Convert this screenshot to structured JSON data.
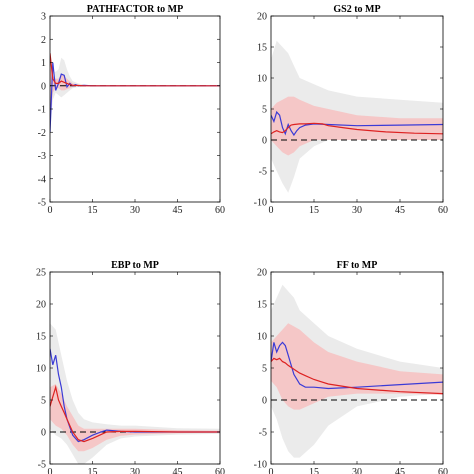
{
  "colors": {
    "outer_band": "#ebebeb",
    "inner_band": "#f6c3c3",
    "blue_line": "#3b3bd6",
    "red_line": "#dd2222",
    "zero_line": "#000000"
  },
  "chart_data": [
    {
      "type": "line",
      "title": "PATHFACTOR to MP",
      "xlim": [
        0,
        60
      ],
      "ylim": [
        -5,
        3
      ],
      "xticks": [
        0,
        15,
        30,
        45,
        60
      ],
      "yticks": [
        -5,
        -4,
        -3,
        -2,
        -1,
        0,
        1,
        2,
        3
      ],
      "zero_line": true,
      "outer_band": {
        "x": [
          0,
          1,
          2,
          3,
          4,
          5,
          6,
          7,
          8,
          10,
          12,
          15,
          60
        ],
        "lower": [
          -2.1,
          -0.6,
          -0.3,
          -0.4,
          -0.5,
          -0.4,
          -0.3,
          -0.2,
          -0.1,
          -0.05,
          -0.02,
          0,
          0
        ],
        "upper": [
          1.4,
          0.6,
          0.6,
          0.7,
          1.2,
          1.1,
          0.7,
          0.4,
          0.2,
          0.1,
          0.05,
          0.02,
          0
        ]
      },
      "inner_band": {
        "x": [
          0,
          1,
          2,
          3,
          4,
          5,
          6,
          7,
          8,
          10,
          12,
          15,
          60
        ],
        "lower": [
          -1.8,
          -0.3,
          -0.1,
          -0.1,
          -0.2,
          -0.2,
          -0.15,
          -0.1,
          -0.05,
          -0.02,
          0,
          0,
          0
        ],
        "upper": [
          1.2,
          0.4,
          0.3,
          0.3,
          0.5,
          0.4,
          0.3,
          0.2,
          0.1,
          0.05,
          0.02,
          0,
          0
        ]
      },
      "series": [
        {
          "color_key": "blue_line",
          "x": [
            0,
            1,
            2,
            3,
            4,
            5,
            6,
            7,
            8,
            9,
            10,
            12,
            15,
            60
          ],
          "y": [
            -2.0,
            1.0,
            -0.2,
            0.1,
            0.5,
            0.45,
            -0.05,
            0.1,
            0.0,
            0.05,
            0.0,
            0.02,
            0.0,
            0.0
          ]
        },
        {
          "color_key": "red_line",
          "x": [
            0,
            1,
            2,
            3,
            4,
            5,
            6,
            7,
            8,
            10,
            12,
            15,
            60
          ],
          "y": [
            1.4,
            0.3,
            0.1,
            0.1,
            0.2,
            0.15,
            0.1,
            0.05,
            0.02,
            0.01,
            0.0,
            0.0,
            0.0
          ]
        }
      ]
    },
    {
      "type": "line",
      "title": "GS2 to MP",
      "xlim": [
        0,
        60
      ],
      "ylim": [
        -10,
        20
      ],
      "xticks": [
        0,
        15,
        30,
        45,
        60
      ],
      "yticks": [
        -10,
        -5,
        0,
        5,
        10,
        15,
        20
      ],
      "zero_line": true,
      "outer_band": {
        "x": [
          0,
          2,
          4,
          6,
          8,
          10,
          15,
          20,
          30,
          45,
          60
        ],
        "lower": [
          -3,
          -5,
          -7,
          -8.5,
          -6,
          -3,
          -1,
          0,
          0.5,
          0.5,
          0.5
        ],
        "upper": [
          13,
          16,
          15,
          14,
          12,
          10,
          9,
          8,
          7,
          6.5,
          6
        ]
      },
      "inner_band": {
        "x": [
          0,
          2,
          4,
          6,
          8,
          10,
          15,
          20,
          30,
          45,
          60
        ],
        "lower": [
          0,
          -1,
          -2,
          -2.5,
          -2,
          -1,
          0,
          0,
          0,
          0,
          0
        ],
        "upper": [
          5,
          6,
          6.5,
          7,
          7,
          6.5,
          5.5,
          5,
          4,
          3.5,
          3.5
        ]
      },
      "series": [
        {
          "color_key": "blue_line",
          "x": [
            0,
            1,
            2,
            3,
            4,
            5,
            6,
            7,
            8,
            9,
            10,
            12,
            15,
            20,
            30,
            45,
            60
          ],
          "y": [
            4,
            3,
            4.5,
            4,
            2,
            1,
            2.5,
            1.5,
            0.8,
            1.5,
            2,
            2.4,
            2.6,
            2.5,
            2.3,
            2.4,
            2.5
          ]
        },
        {
          "color_key": "red_line",
          "x": [
            0,
            1,
            2,
            3,
            4,
            5,
            6,
            7,
            8,
            10,
            12,
            15,
            18,
            20,
            25,
            30,
            40,
            50,
            60
          ],
          "y": [
            1,
            1.3,
            1.5,
            1.3,
            1.2,
            1.5,
            2.0,
            2.4,
            2.5,
            2.6,
            2.6,
            2.7,
            2.6,
            2.3,
            2.0,
            1.7,
            1.3,
            1.1,
            1.0
          ]
        }
      ]
    },
    {
      "type": "line",
      "title": "EBP to MP",
      "xlim": [
        0,
        60
      ],
      "ylim": [
        -5,
        25
      ],
      "xticks": [
        0,
        15,
        30,
        45,
        60
      ],
      "yticks": [
        -5,
        0,
        5,
        10,
        15,
        20,
        25
      ],
      "zero_line": true,
      "outer_band": {
        "x": [
          0,
          2,
          4,
          6,
          8,
          10,
          12,
          15,
          20,
          25,
          30,
          45,
          60
        ],
        "lower": [
          0.5,
          -0.5,
          -1,
          -2,
          -3.5,
          -5,
          -5,
          -4,
          -2,
          -1,
          -0.7,
          -0.4,
          -0.3
        ],
        "upper": [
          17,
          16,
          12,
          8,
          5,
          3,
          2,
          1.5,
          1.2,
          1,
          1,
          0.6,
          0.5
        ]
      },
      "inner_band": {
        "x": [
          0,
          2,
          4,
          6,
          8,
          10,
          12,
          15,
          20,
          25,
          30,
          45,
          60
        ],
        "lower": [
          2,
          1,
          0.5,
          -0.5,
          -2,
          -3,
          -3,
          -2.5,
          -1.2,
          -0.6,
          -0.4,
          -0.2,
          -0.1
        ],
        "upper": [
          7,
          7.5,
          6,
          4,
          2.5,
          1,
          0.5,
          0.5,
          0.5,
          0.5,
          0.5,
          0.3,
          0.2
        ]
      },
      "series": [
        {
          "color_key": "blue_line",
          "x": [
            0,
            1,
            2,
            3,
            4,
            5,
            6,
            8,
            10,
            12,
            15,
            18,
            20,
            25,
            30,
            45,
            60
          ],
          "y": [
            13,
            10.5,
            12,
            9,
            7,
            4,
            2,
            -0.5,
            -1.5,
            -1.2,
            -0.5,
            0,
            0.3,
            0.1,
            0,
            0,
            0
          ]
        },
        {
          "color_key": "red_line",
          "x": [
            0,
            1,
            2,
            3,
            4,
            5,
            6,
            8,
            10,
            12,
            15,
            18,
            20,
            25,
            30,
            45,
            60
          ],
          "y": [
            4,
            5.5,
            7,
            5,
            4,
            3,
            2,
            0,
            -1.2,
            -1.5,
            -1.0,
            -0.4,
            0.0,
            0.1,
            0.1,
            0,
            0
          ]
        }
      ]
    },
    {
      "type": "line",
      "title": "FF to MP",
      "xlim": [
        0,
        60
      ],
      "ylim": [
        -10,
        20
      ],
      "xticks": [
        0,
        15,
        30,
        45,
        60
      ],
      "yticks": [
        -10,
        -5,
        0,
        5,
        10,
        15,
        20
      ],
      "zero_line": true,
      "outer_band": {
        "x": [
          0,
          2,
          4,
          6,
          8,
          10,
          15,
          20,
          30,
          45,
          60
        ],
        "lower": [
          -1,
          -3,
          -6,
          -8,
          -9,
          -9,
          -7,
          -4,
          -1,
          0.5,
          1
        ],
        "upper": [
          14,
          16,
          18,
          17,
          16,
          14,
          12,
          10,
          8,
          6,
          5
        ]
      },
      "inner_band": {
        "x": [
          0,
          2,
          4,
          6,
          8,
          10,
          15,
          20,
          30,
          45,
          60
        ],
        "lower": [
          3,
          2,
          0,
          -1,
          -1.5,
          -1.5,
          -0.5,
          0.5,
          1,
          1,
          0.8
        ],
        "upper": [
          9,
          10,
          11,
          12,
          11.5,
          11,
          9,
          7.5,
          6,
          4.5,
          4
        ]
      },
      "series": [
        {
          "color_key": "blue_line",
          "x": [
            0,
            1,
            2,
            3,
            4,
            5,
            6,
            8,
            10,
            12,
            15,
            20,
            30,
            45,
            60
          ],
          "y": [
            6,
            9,
            7.5,
            8.5,
            9,
            8.5,
            7,
            4,
            2.5,
            2,
            2,
            1.8,
            2.0,
            2.4,
            2.8
          ]
        },
        {
          "color_key": "red_line",
          "x": [
            0,
            1,
            2,
            3,
            4,
            5,
            6,
            8,
            10,
            12,
            15,
            20,
            30,
            45,
            60
          ],
          "y": [
            6,
            6.5,
            6.3,
            6.5,
            6,
            5.8,
            5.4,
            4.8,
            4.2,
            3.8,
            3.2,
            2.5,
            1.8,
            1.3,
            1.0
          ]
        }
      ]
    }
  ]
}
